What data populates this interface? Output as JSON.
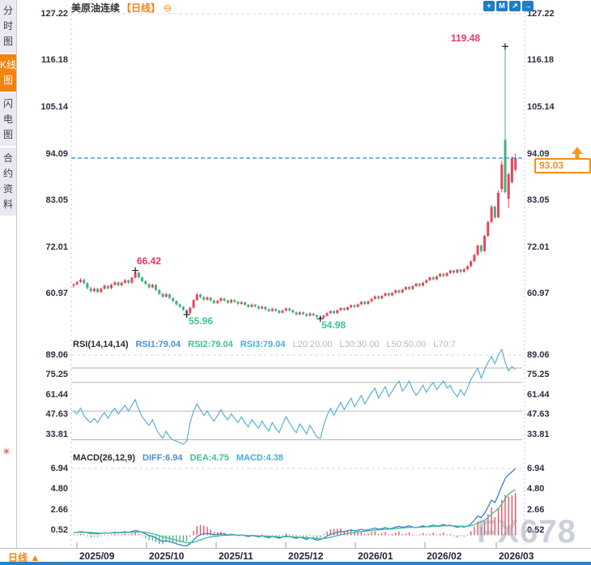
{
  "sidebar": {
    "tabs": [
      {
        "label": "分时图",
        "active": false
      },
      {
        "label": "K线图",
        "active": true
      },
      {
        "label": "闪电图",
        "active": false
      },
      {
        "label": "合约资料",
        "active": false
      }
    ],
    "sun_icon": "✳"
  },
  "header": {
    "title": "美原油连续",
    "period_tag": "【日线】",
    "collapse_icon": "⊖",
    "toolbar_icons": [
      {
        "name": "pan",
        "glyph": "+"
      },
      {
        "name": "indicator-window",
        "glyph": "M"
      },
      {
        "name": "trend-line",
        "glyph": "↗"
      },
      {
        "name": "exit",
        "glyph": "→"
      }
    ]
  },
  "main_chart": {
    "y_labels": [
      "127.22",
      "116.18",
      "105.14",
      "94.09",
      "83.05",
      "72.01",
      "60.97"
    ],
    "annotations": {
      "highest": "119.48",
      "peak": "66.42",
      "low1": "55.96",
      "low2": "54.98"
    },
    "current_price_label": "93.03"
  },
  "rsi_header": {
    "name": "RSI(14,14,14)",
    "rsi1": "RSI1:79.04",
    "rsi2": "RSI2:79.04",
    "rsi3": "RSI3:79.04",
    "l20": "L20:20.00",
    "l30": "L30:30.00",
    "l50": "L50:50.00",
    "l70": "L70:7",
    "y_labels": [
      "89.06",
      "75.25",
      "61.44",
      "47.63",
      "33.81"
    ]
  },
  "macd_header": {
    "name": "MACD(26,12,9)",
    "diff": "DIFF:6.94",
    "dea": "DEA:4.75",
    "macd": "MACD:4.38",
    "y_labels": [
      "6.94",
      "4.80",
      "2.66",
      "0.52"
    ]
  },
  "x_axis": {
    "period": "日线",
    "period_arrow": "▲",
    "months": [
      "2025/09",
      "2025/10",
      "2025/11",
      "2025/12",
      "2026/01",
      "2026/02",
      "2026/03"
    ]
  },
  "watermark": "FX678",
  "colors": {
    "up": "#e8465a",
    "down": "#45b17e",
    "rsi_line": "#5ab0d8",
    "diff_line": "#3a7fd0",
    "dea_line": "#3fbf92",
    "accent_orange": "#f28411",
    "annotation_red": "#e8375f",
    "annotation_green": "#3cc49a",
    "current_price_orange": "#f29019",
    "dashed_price_line": "#2e86d5",
    "toolbar_blue": "#1f7ec2"
  },
  "chart_data": {
    "type": "candlestick+indicators",
    "symbol": "美原油连续",
    "interval": "日线",
    "price_axis": [
      127.22,
      116.18,
      105.14,
      94.09,
      83.05,
      72.01,
      60.97
    ],
    "current_price": 93.03,
    "rsi_axis": [
      89.06,
      75.25,
      61.44,
      47.63,
      33.81
    ],
    "rsi_levels": [
      80,
      70,
      50,
      30
    ],
    "macd_axis": [
      6.94,
      4.8,
      2.66,
      0.52
    ],
    "annotations": {
      "highest": {
        "index": 126,
        "price": 119.48,
        "label": "119.48"
      },
      "peak": {
        "index": 18,
        "price": 66.42,
        "label": "66.42"
      },
      "low1": {
        "index": 33,
        "price": 55.96,
        "label": "55.96"
      },
      "low2": {
        "index": 72,
        "price": 54.98,
        "label": "54.98"
      }
    },
    "candles": [
      [
        62.8,
        63.4,
        62.3,
        63.1
      ],
      [
        63.1,
        63.9,
        62.9,
        63.7
      ],
      [
        63.7,
        64.6,
        63.4,
        64.2
      ],
      [
        64.2,
        64.5,
        63.1,
        63.4
      ],
      [
        63.4,
        63.7,
        61.9,
        62.2
      ],
      [
        62.2,
        62.6,
        61.2,
        61.5
      ],
      [
        61.5,
        62.4,
        61.2,
        62.1
      ],
      [
        62.1,
        62.3,
        61.0,
        61.3
      ],
      [
        61.3,
        62.4,
        61.1,
        62.1
      ],
      [
        62.1,
        63.1,
        61.9,
        62.8
      ],
      [
        62.8,
        63.0,
        61.9,
        62.2
      ],
      [
        62.2,
        63.3,
        62.0,
        63.0
      ],
      [
        63.0,
        63.9,
        62.8,
        63.6
      ],
      [
        63.6,
        63.8,
        62.6,
        62.9
      ],
      [
        62.9,
        63.8,
        62.7,
        63.5
      ],
      [
        63.5,
        64.4,
        63.3,
        64.1
      ],
      [
        64.1,
        64.3,
        63.2,
        63.5
      ],
      [
        63.5,
        64.9,
        63.3,
        64.7
      ],
      [
        64.7,
        66.42,
        64.5,
        65.9
      ],
      [
        65.9,
        66.1,
        64.5,
        64.8
      ],
      [
        64.8,
        65.0,
        63.6,
        63.9
      ],
      [
        63.9,
        64.1,
        62.9,
        63.2
      ],
      [
        63.2,
        63.4,
        62.1,
        62.4
      ],
      [
        62.4,
        63.3,
        62.2,
        63.0
      ],
      [
        63.0,
        63.1,
        61.5,
        61.8
      ],
      [
        61.8,
        62.0,
        60.6,
        60.9
      ],
      [
        60.9,
        61.1,
        59.9,
        60.2
      ],
      [
        60.2,
        61.1,
        60.0,
        60.8
      ],
      [
        60.8,
        60.9,
        59.6,
        59.9
      ],
      [
        59.9,
        60.1,
        58.9,
        59.2
      ],
      [
        59.2,
        59.4,
        58.1,
        58.4
      ],
      [
        58.4,
        58.6,
        57.5,
        57.8
      ],
      [
        57.8,
        58.0,
        56.8,
        57.1
      ],
      [
        57.1,
        57.2,
        55.96,
        56.3
      ],
      [
        56.3,
        57.8,
        56.1,
        57.6
      ],
      [
        57.6,
        59.6,
        57.4,
        59.4
      ],
      [
        59.4,
        61.2,
        59.2,
        60.7
      ],
      [
        60.7,
        60.9,
        59.8,
        60.1
      ],
      [
        60.1,
        60.3,
        59.2,
        59.5
      ],
      [
        59.5,
        60.3,
        59.3,
        60.0
      ],
      [
        60.0,
        60.1,
        59.0,
        59.3
      ],
      [
        59.3,
        59.5,
        58.4,
        58.7
      ],
      [
        58.7,
        59.5,
        58.5,
        59.2
      ],
      [
        59.2,
        60.1,
        59.0,
        59.8
      ],
      [
        59.8,
        59.9,
        59.0,
        59.3
      ],
      [
        59.3,
        59.5,
        58.5,
        58.8
      ],
      [
        58.8,
        59.7,
        58.6,
        59.4
      ],
      [
        59.4,
        59.6,
        58.7,
        59.0
      ],
      [
        59.0,
        59.2,
        58.2,
        58.5
      ],
      [
        58.5,
        59.2,
        58.3,
        58.9
      ],
      [
        58.9,
        59.0,
        58.0,
        58.3
      ],
      [
        58.3,
        58.5,
        57.5,
        57.8
      ],
      [
        57.8,
        58.6,
        57.6,
        58.3
      ],
      [
        58.3,
        58.5,
        57.6,
        57.9
      ],
      [
        57.9,
        58.1,
        57.1,
        57.4
      ],
      [
        57.4,
        58.1,
        57.2,
        57.8
      ],
      [
        57.8,
        57.9,
        56.9,
        57.2
      ],
      [
        57.2,
        57.4,
        56.5,
        56.8
      ],
      [
        56.8,
        57.6,
        56.6,
        57.3
      ],
      [
        57.3,
        57.5,
        56.6,
        56.9
      ],
      [
        56.9,
        57.1,
        56.1,
        56.4
      ],
      [
        56.4,
        57.2,
        56.2,
        56.9
      ],
      [
        56.9,
        57.7,
        56.7,
        57.4
      ],
      [
        57.4,
        57.6,
        56.7,
        57.0
      ],
      [
        57.0,
        57.2,
        56.2,
        56.5
      ],
      [
        56.5,
        56.7,
        55.7,
        56.0
      ],
      [
        56.0,
        56.8,
        55.8,
        56.5
      ],
      [
        56.5,
        56.7,
        55.8,
        56.1
      ],
      [
        56.1,
        56.3,
        55.4,
        55.7
      ],
      [
        55.7,
        56.5,
        55.5,
        56.2
      ],
      [
        56.2,
        56.4,
        55.5,
        55.8
      ],
      [
        55.8,
        56.0,
        55.1,
        55.4
      ],
      [
        55.4,
        55.6,
        54.98,
        55.2
      ],
      [
        55.2,
        55.9,
        55.0,
        55.7
      ],
      [
        55.7,
        56.5,
        55.5,
        56.3
      ],
      [
        56.3,
        57.0,
        56.1,
        56.8
      ],
      [
        56.8,
        57.0,
        56.0,
        56.3
      ],
      [
        56.3,
        57.2,
        56.1,
        57.0
      ],
      [
        57.0,
        57.7,
        56.8,
        57.5
      ],
      [
        57.5,
        57.7,
        56.8,
        57.1
      ],
      [
        57.1,
        57.9,
        56.9,
        57.7
      ],
      [
        57.7,
        58.4,
        57.5,
        58.2
      ],
      [
        58.2,
        58.4,
        57.5,
        57.8
      ],
      [
        57.8,
        58.6,
        57.6,
        58.4
      ],
      [
        58.4,
        59.2,
        58.2,
        59.0
      ],
      [
        59.0,
        59.2,
        58.2,
        58.5
      ],
      [
        58.5,
        59.3,
        58.3,
        59.1
      ],
      [
        59.1,
        59.9,
        58.9,
        59.7
      ],
      [
        59.7,
        60.5,
        59.5,
        60.3
      ],
      [
        60.3,
        60.5,
        59.5,
        59.8
      ],
      [
        59.8,
        60.6,
        59.6,
        60.4
      ],
      [
        60.4,
        61.2,
        60.2,
        61.0
      ],
      [
        61.0,
        61.2,
        60.2,
        60.5
      ],
      [
        60.5,
        61.3,
        60.3,
        61.1
      ],
      [
        61.1,
        61.9,
        60.9,
        61.7
      ],
      [
        61.7,
        61.9,
        60.9,
        61.2
      ],
      [
        61.2,
        62.1,
        61.0,
        61.9
      ],
      [
        61.9,
        62.7,
        61.7,
        62.5
      ],
      [
        62.5,
        62.7,
        61.7,
        62.0
      ],
      [
        62.0,
        62.9,
        61.8,
        62.7
      ],
      [
        62.7,
        63.5,
        62.5,
        63.3
      ],
      [
        63.3,
        63.5,
        62.5,
        62.8
      ],
      [
        62.8,
        63.7,
        62.6,
        63.5
      ],
      [
        63.5,
        64.3,
        63.3,
        64.1
      ],
      [
        64.1,
        64.9,
        63.9,
        64.8
      ],
      [
        64.8,
        65.0,
        64.0,
        64.3
      ],
      [
        64.3,
        65.2,
        64.1,
        65.0
      ],
      [
        65.0,
        65.8,
        64.8,
        65.6
      ],
      [
        65.6,
        65.8,
        64.8,
        65.1
      ],
      [
        65.1,
        66.0,
        64.9,
        65.8
      ],
      [
        65.8,
        66.6,
        65.6,
        66.4
      ],
      [
        66.4,
        66.6,
        65.6,
        65.9
      ],
      [
        65.9,
        66.8,
        65.7,
        66.6
      ],
      [
        66.6,
        66.8,
        65.8,
        66.1
      ],
      [
        66.1,
        67.0,
        65.9,
        66.7
      ],
      [
        66.7,
        67.6,
        66.5,
        67.4
      ],
      [
        67.4,
        68.8,
        67.2,
        68.6
      ],
      [
        68.6,
        70.4,
        68.4,
        70.1
      ],
      [
        70.1,
        72.6,
        69.9,
        72.3
      ],
      [
        72.3,
        72.6,
        70.6,
        71.0
      ],
      [
        71.0,
        74.9,
        70.8,
        74.6
      ],
      [
        74.6,
        78.2,
        74.4,
        77.9
      ],
      [
        77.9,
        81.9,
        77.7,
        81.5
      ],
      [
        81.5,
        81.8,
        78.6,
        79.0
      ],
      [
        79.0,
        85.4,
        78.8,
        84.8
      ],
      [
        85.7,
        92.4,
        84.9,
        91.5
      ],
      [
        97.4,
        119.48,
        84.6,
        85.0
      ],
      [
        83.4,
        89.6,
        81.2,
        89.2
      ],
      [
        87.3,
        93.5,
        87.0,
        93.0
      ],
      [
        90.3,
        94.2,
        89.8,
        93.03
      ]
    ],
    "rsi": [
      50,
      48,
      52,
      47,
      44,
      42,
      45,
      42,
      46,
      49,
      45,
      49,
      52,
      48,
      51,
      54,
      50,
      54,
      58,
      51,
      46,
      43,
      40,
      44,
      38,
      34,
      31,
      36,
      32,
      30,
      29,
      28,
      27,
      29,
      42,
      50,
      55,
      51,
      47,
      50,
      46,
      43,
      47,
      51,
      47,
      44,
      48,
      45,
      42,
      46,
      42,
      39,
      44,
      41,
      38,
      43,
      39,
      36,
      42,
      38,
      35,
      41,
      46,
      42,
      38,
      35,
      41,
      38,
      34,
      40,
      36,
      32,
      31,
      40,
      47,
      52,
      47,
      52,
      56,
      51,
      55,
      59,
      53,
      57,
      61,
      55,
      59,
      63,
      66,
      59,
      63,
      67,
      60,
      64,
      68,
      71,
      64,
      67,
      71,
      65,
      61,
      64,
      68,
      63,
      67,
      70,
      65,
      68,
      71,
      66,
      68,
      63,
      60,
      65,
      61,
      66,
      72,
      76,
      80,
      73,
      79,
      84,
      88,
      83,
      89,
      93,
      84,
      78,
      81,
      79.04
    ],
    "macd_diff": [
      0.3,
      0.32,
      0.38,
      0.34,
      0.26,
      0.18,
      0.2,
      0.16,
      0.2,
      0.26,
      0.22,
      0.26,
      0.32,
      0.28,
      0.32,
      0.38,
      0.32,
      0.4,
      0.5,
      0.42,
      0.3,
      0.14,
      -0.02,
      -0.1,
      -0.28,
      -0.48,
      -0.62,
      -0.58,
      -0.66,
      -0.76,
      -0.88,
      -0.98,
      -1.06,
      -1.1,
      -0.86,
      -0.5,
      -0.14,
      0.06,
      0.16,
      0.2,
      0.14,
      0.04,
      0.08,
      0.16,
      0.12,
      0.04,
      0.1,
      0.06,
      -0.02,
      0.04,
      -0.04,
      -0.12,
      -0.02,
      -0.08,
      -0.16,
      -0.06,
      -0.16,
      -0.26,
      -0.12,
      -0.2,
      -0.3,
      -0.18,
      -0.06,
      -0.12,
      -0.22,
      -0.32,
      -0.2,
      -0.3,
      -0.42,
      -0.26,
      -0.36,
      -0.5,
      -0.46,
      -0.28,
      -0.08,
      0.1,
      0.22,
      0.32,
      0.42,
      0.36,
      0.46,
      0.56,
      0.46,
      0.52,
      0.62,
      0.5,
      0.56,
      0.66,
      0.76,
      0.64,
      0.7,
      0.8,
      0.68,
      0.74,
      0.84,
      0.94,
      0.82,
      0.88,
      0.98,
      0.86,
      0.8,
      0.88,
      0.98,
      0.88,
      0.96,
      1.06,
      0.96,
      1.02,
      1.12,
      1.0,
      1.06,
      0.94,
      0.84,
      0.92,
      0.86,
      0.96,
      1.2,
      1.55,
      2.0,
      1.85,
      2.3,
      2.95,
      3.65,
      3.4,
      4.2,
      5.1,
      5.9,
      6.3,
      6.6,
      6.94
    ],
    "macd_dea": [
      0.3,
      0.3,
      0.31,
      0.32,
      0.31,
      0.29,
      0.27,
      0.25,
      0.24,
      0.24,
      0.24,
      0.24,
      0.25,
      0.26,
      0.27,
      0.29,
      0.29,
      0.31,
      0.34,
      0.36,
      0.35,
      0.31,
      0.24,
      0.17,
      0.08,
      -0.03,
      -0.15,
      -0.23,
      -0.32,
      -0.41,
      -0.5,
      -0.6,
      -0.69,
      -0.77,
      -0.79,
      -0.73,
      -0.61,
      -0.48,
      -0.35,
      -0.24,
      -0.16,
      -0.12,
      -0.08,
      -0.03,
      0.0,
      0.01,
      0.03,
      0.03,
      0.02,
      0.03,
      0.01,
      -0.02,
      -0.02,
      -0.03,
      -0.06,
      -0.06,
      -0.08,
      -0.11,
      -0.11,
      -0.13,
      -0.17,
      -0.17,
      -0.15,
      -0.14,
      -0.16,
      -0.19,
      -0.19,
      -0.21,
      -0.25,
      -0.26,
      -0.28,
      -0.32,
      -0.35,
      -0.33,
      -0.28,
      -0.21,
      -0.12,
      -0.03,
      0.06,
      0.12,
      0.19,
      0.26,
      0.3,
      0.35,
      0.4,
      0.42,
      0.45,
      0.49,
      0.55,
      0.57,
      0.59,
      0.63,
      0.64,
      0.66,
      0.7,
      0.75,
      0.76,
      0.79,
      0.82,
      0.83,
      0.83,
      0.84,
      0.86,
      0.87,
      0.89,
      0.92,
      0.93,
      0.95,
      0.98,
      0.99,
      1.0,
      0.99,
      0.96,
      0.95,
      0.93,
      0.94,
      0.99,
      1.1,
      1.28,
      1.39,
      1.58,
      1.85,
      2.21,
      2.45,
      2.8,
      3.26,
      3.79,
      4.29,
      4.53,
      4.75
    ]
  }
}
